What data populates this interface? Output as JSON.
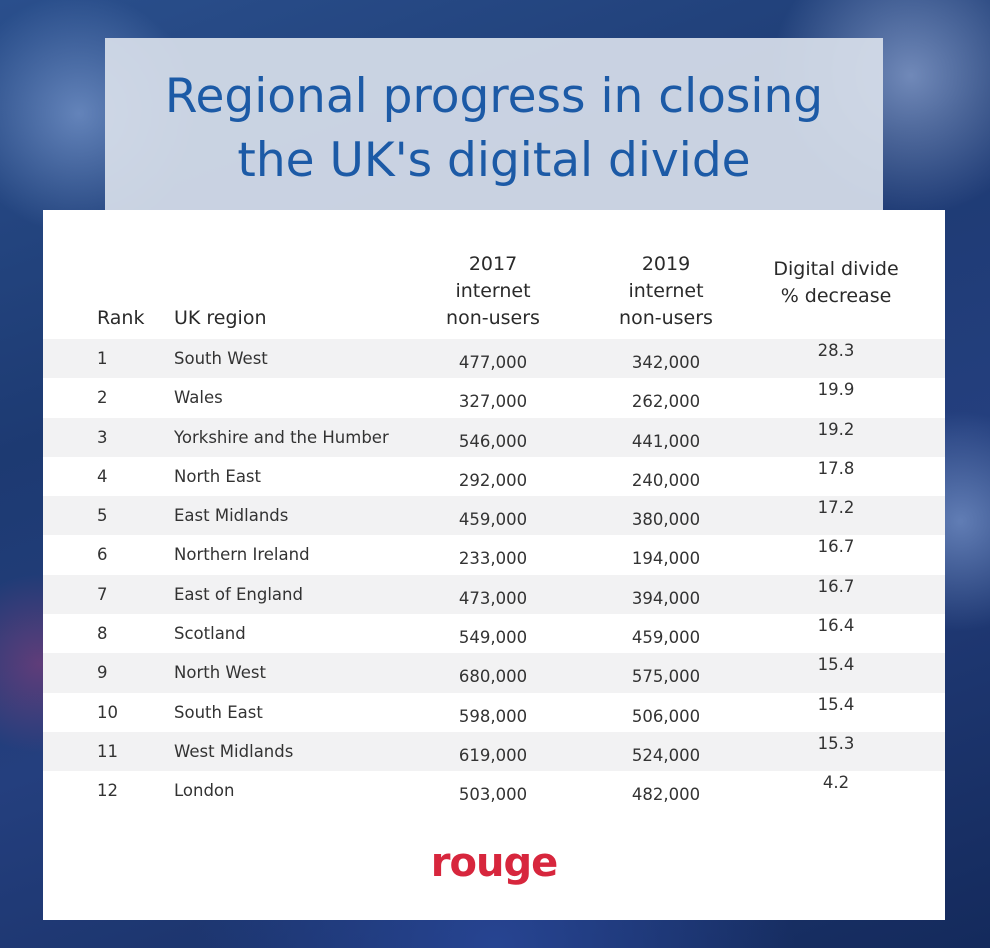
{
  "title_line1": "Regional progress in closing",
  "title_line2": "the UK's digital divide",
  "logo_text": "rouge",
  "colors": {
    "title": "#1c5aa6",
    "logo": "#d7263d",
    "row_shade": "#f2f2f3"
  },
  "chart_data": {
    "type": "table",
    "columns": [
      "Rank",
      "UK region",
      "2017 internet non-users",
      "2019 internet non-users",
      "Digital divide % decrease"
    ],
    "header_lines": {
      "rank": [
        "Rank"
      ],
      "region": [
        "UK region"
      ],
      "y2017": [
        "2017",
        "internet",
        "non-users"
      ],
      "y2019": [
        "2019",
        "internet",
        "non-users"
      ],
      "pct": [
        "Digital divide",
        "% decrease"
      ]
    },
    "rows": [
      [
        "1",
        "South West",
        "477,000",
        "342,000",
        "28.3"
      ],
      [
        "2",
        "Wales",
        "327,000",
        "262,000",
        "19.9"
      ],
      [
        "3",
        "Yorkshire and the Humber",
        "546,000",
        "441,000",
        "19.2"
      ],
      [
        "4",
        "North East",
        "292,000",
        "240,000",
        "17.8"
      ],
      [
        "5",
        "East Midlands",
        "459,000",
        "380,000",
        "17.2"
      ],
      [
        "6",
        "Northern Ireland",
        "233,000",
        "194,000",
        "16.7"
      ],
      [
        "7",
        "East of England",
        "473,000",
        "394,000",
        "16.7"
      ],
      [
        "8",
        "Scotland",
        "549,000",
        "459,000",
        "16.4"
      ],
      [
        "9",
        "North West",
        "680,000",
        "575,000",
        "15.4"
      ],
      [
        "10",
        "South East",
        "598,000",
        "506,000",
        "15.4"
      ],
      [
        "11",
        "West Midlands",
        "619,000",
        "524,000",
        "15.3"
      ],
      [
        "12",
        "London",
        "503,000",
        "482,000",
        "4.2"
      ]
    ]
  }
}
